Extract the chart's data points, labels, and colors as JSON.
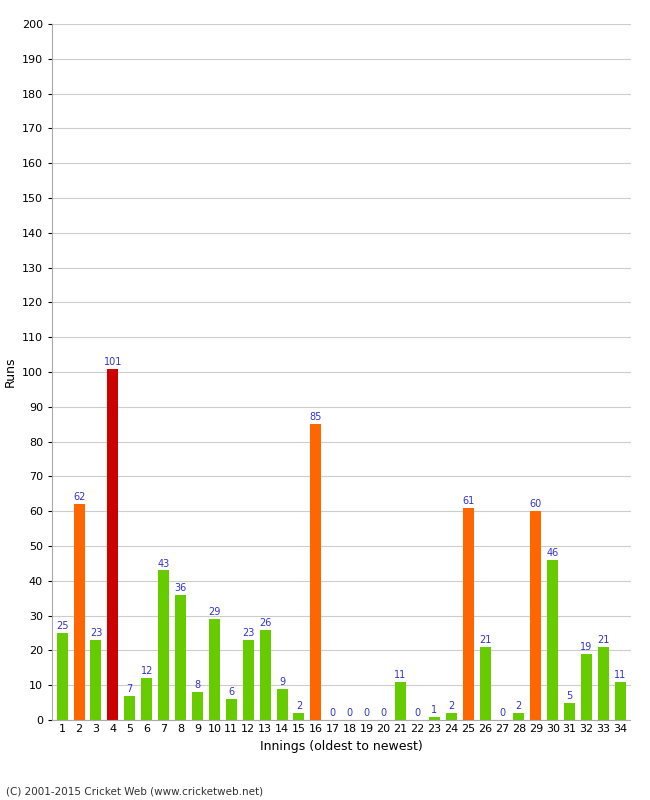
{
  "innings": [
    1,
    2,
    3,
    4,
    5,
    6,
    7,
    8,
    9,
    10,
    11,
    12,
    13,
    14,
    15,
    16,
    17,
    18,
    19,
    20,
    21,
    22,
    23,
    24,
    25,
    26,
    27,
    28,
    29,
    30,
    31,
    32,
    33,
    34
  ],
  "values": [
    25,
    62,
    23,
    101,
    7,
    12,
    43,
    36,
    8,
    29,
    6,
    23,
    26,
    9,
    2,
    85,
    0,
    0,
    0,
    0,
    11,
    0,
    1,
    2,
    61,
    21,
    0,
    2,
    60,
    46,
    5,
    19,
    21,
    11
  ],
  "colors": [
    "#66cc00",
    "#ff6600",
    "#66cc00",
    "#cc0000",
    "#66cc00",
    "#66cc00",
    "#66cc00",
    "#66cc00",
    "#66cc00",
    "#66cc00",
    "#66cc00",
    "#66cc00",
    "#66cc00",
    "#66cc00",
    "#66cc00",
    "#ff6600",
    "#66cc00",
    "#66cc00",
    "#66cc00",
    "#66cc00",
    "#66cc00",
    "#66cc00",
    "#66cc00",
    "#66cc00",
    "#ff6600",
    "#66cc00",
    "#66cc00",
    "#66cc00",
    "#ff6600",
    "#66cc00",
    "#66cc00",
    "#66cc00",
    "#66cc00",
    "#66cc00"
  ],
  "xlabel": "Innings (oldest to newest)",
  "ylabel": "Runs",
  "ylim": [
    0,
    200
  ],
  "yticks": [
    0,
    10,
    20,
    30,
    40,
    50,
    60,
    70,
    80,
    90,
    100,
    110,
    120,
    130,
    140,
    150,
    160,
    170,
    180,
    190,
    200
  ],
  "background_color": "#ffffff",
  "grid_color": "#cccccc",
  "label_color": "#3333cc",
  "label_fontsize": 7,
  "axis_fontsize": 9,
  "tick_fontsize": 8,
  "footer": "(C) 2001-2015 Cricket Web (www.cricketweb.net)"
}
